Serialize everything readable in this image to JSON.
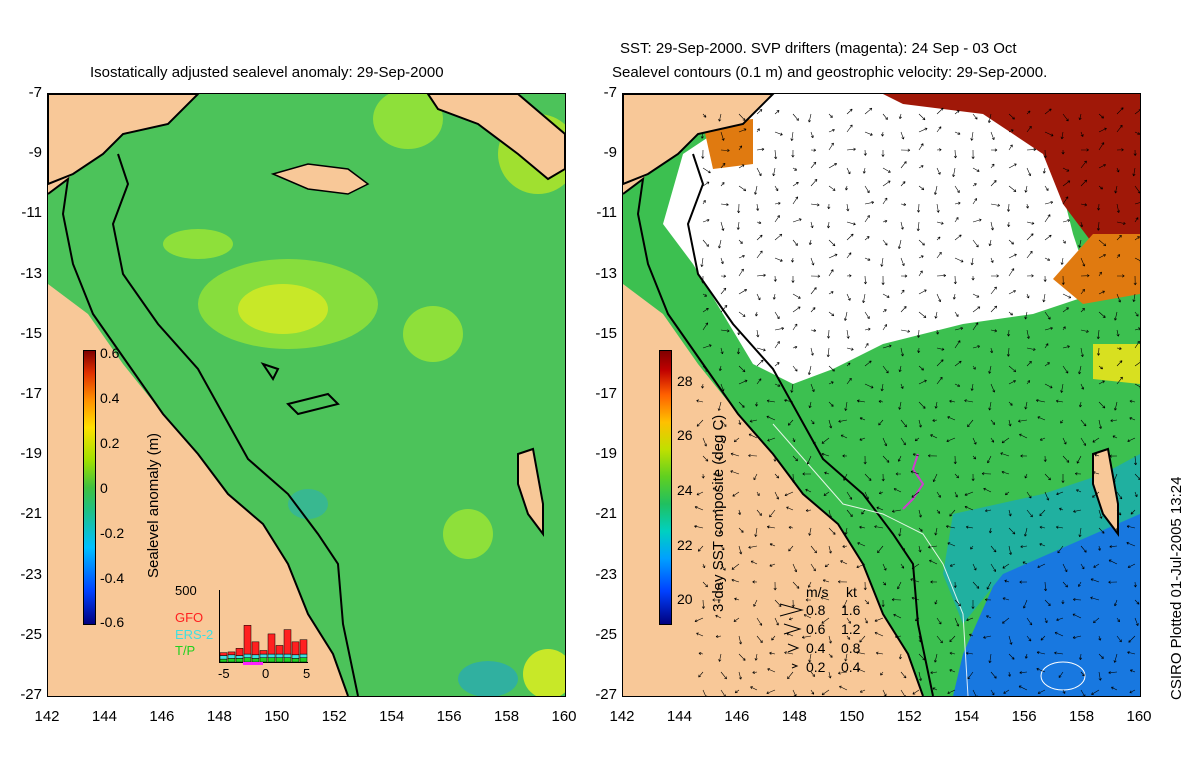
{
  "left_panel": {
    "title": "Isostatically adjusted sealevel anomaly: 29-Sep-2000",
    "colorbar": {
      "label": "Sealevel anomaly (m)",
      "ticks": [
        "0.6",
        "0.4",
        "0.2",
        "0",
        "-0.2",
        "-0.4",
        "-0.6"
      ],
      "colors": [
        "#00007f",
        "#0040ff",
        "#00c0ff",
        "#20c080",
        "#40c040",
        "#a0e000",
        "#ffe000",
        "#ff9000",
        "#e03000",
        "#800000"
      ]
    },
    "inset": {
      "ymax": "500",
      "legend": [
        {
          "name": "GFO",
          "color": "#ff2020"
        },
        {
          "name": "ERS-2",
          "color": "#40e0e0"
        },
        {
          "name": "T/P",
          "color": "#20d020"
        }
      ],
      "xticks": [
        "-5",
        "0",
        "5"
      ],
      "bars": [
        {
          "tp": 0.04,
          "ers": 0.05,
          "gfo": 0.04
        },
        {
          "tp": 0.05,
          "ers": 0.05,
          "gfo": 0.04
        },
        {
          "tp": 0.05,
          "ers": 0.04,
          "gfo": 0.1
        },
        {
          "tp": 0.06,
          "ers": 0.05,
          "gfo": 0.4
        },
        {
          "tp": 0.05,
          "ers": 0.05,
          "gfo": 0.18
        },
        {
          "tp": 0.06,
          "ers": 0.05,
          "gfo": 0.05
        },
        {
          "tp": 0.06,
          "ers": 0.05,
          "gfo": 0.28
        },
        {
          "tp": 0.06,
          "ers": 0.05,
          "gfo": 0.12
        },
        {
          "tp": 0.06,
          "ers": 0.05,
          "gfo": 0.34
        },
        {
          "tp": 0.05,
          "ers": 0.05,
          "gfo": 0.18
        },
        {
          "tp": 0.06,
          "ers": 0.05,
          "gfo": 0.2
        }
      ]
    }
  },
  "right_panel": {
    "title_line1": "SST: 29-Sep-2000. SVP drifters (magenta): 24 Sep - 03 Oct",
    "title_line2": "Sealevel contours (0.1 m) and geostrophic velocity: 29-Sep-2000.",
    "colorbar": {
      "label": "3-day SST composite (deg C)",
      "ticks": [
        "28",
        "26",
        "24",
        "22",
        "20"
      ],
      "colors": [
        "#00007f",
        "#0040ff",
        "#00a0ff",
        "#00d0c0",
        "#20c060",
        "#60d020",
        "#c0e000",
        "#ffc000",
        "#ff6000",
        "#c00000",
        "#800000"
      ]
    },
    "speed_legend": {
      "header_ms": "m/s",
      "header_kt": "kt",
      "rows": [
        {
          "ms": "0.8",
          "kt": "1.6"
        },
        {
          "ms": "0.6",
          "kt": "1.2"
        },
        {
          "ms": "0.4",
          "kt": "0.8"
        },
        {
          "ms": "0.2",
          "kt": "0.4"
        }
      ]
    }
  },
  "axes": {
    "lat_labels": [
      "-7",
      "-9",
      "-11",
      "-13",
      "-15",
      "-17",
      "-19",
      "-21",
      "-23",
      "-25",
      "-27"
    ],
    "lon_labels": [
      "142",
      "144",
      "146",
      "148",
      "150",
      "152",
      "154",
      "156",
      "158",
      "160"
    ]
  },
  "footer": {
    "credit": "CSIRO Plotted 01-Jul-2005 13:24"
  },
  "map_colors": {
    "land": "#f8c898",
    "ocean_sla": "#4cc35a",
    "ocean_light": "#8ee03a",
    "ocean_teal": "#30b0a0",
    "cloud": "#ffffff",
    "warm_orange": "#e07a10",
    "warm_red": "#a01808",
    "sst_green": "#3cc050",
    "sst_yellow": "#d8e020",
    "sst_blue": "#1878e0"
  }
}
